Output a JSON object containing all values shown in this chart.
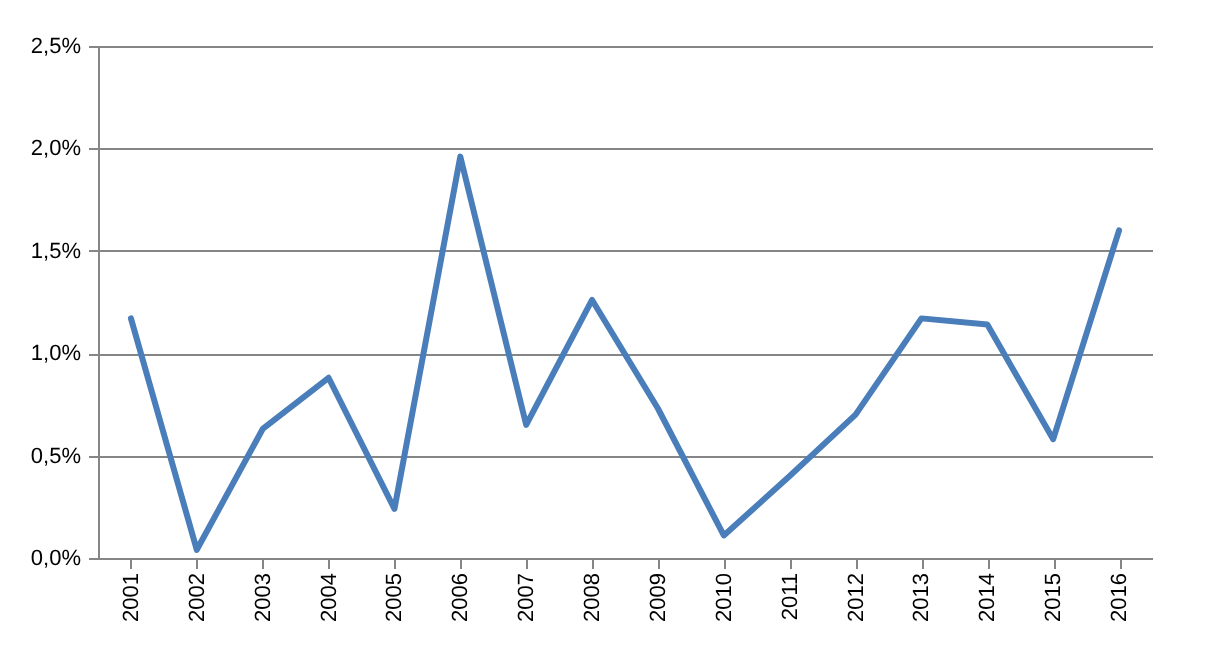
{
  "chart_data": {
    "type": "line",
    "categories": [
      "2001",
      "2002",
      "2003",
      "2004",
      "2005",
      "2006",
      "2007",
      "2008",
      "2009",
      "2010",
      "2011",
      "2012",
      "2013",
      "2014",
      "2015",
      "2016"
    ],
    "series": [
      {
        "color": "#4a7ebb",
        "values": [
          1.17,
          0.04,
          0.63,
          0.88,
          0.24,
          1.96,
          0.65,
          1.26,
          0.73,
          0.11,
          0.4,
          0.7,
          1.17,
          1.14,
          0.58,
          1.6
        ]
      }
    ],
    "ylim": [
      0,
      2.5
    ],
    "yticks": [
      {
        "value": 0,
        "label": "0,0%"
      },
      {
        "value": 0.5,
        "label": "0,5%"
      },
      {
        "value": 1,
        "label": "1,0%"
      },
      {
        "value": 1.5,
        "label": "1,5%"
      },
      {
        "value": 2,
        "label": "2,0%"
      },
      {
        "value": 2.5,
        "label": "2,5%"
      }
    ],
    "grid": "y",
    "marker": "none",
    "line_style": "solid"
  }
}
